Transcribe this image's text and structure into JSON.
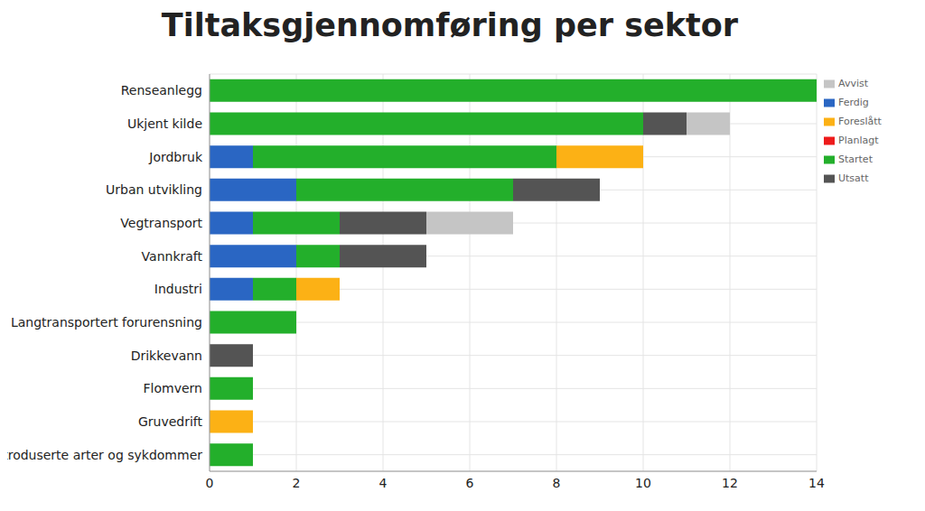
{
  "chart_data": {
    "type": "bar",
    "title": "Tiltaksgjennomføring per sektor",
    "orientation": "horizontal",
    "stacked": true,
    "grid": true,
    "legend": "top-right",
    "categories": [
      "Renseanlegg",
      "Ukjent kilde",
      "Jordbruk",
      "Urban utvikling",
      "Vegtransport",
      "Vannkraft",
      "Industri",
      "Langtransportert forurensning",
      "Drikkevann",
      "Flomvern",
      "Gruvedrift",
      "Introduserte arter og sykdommer"
    ],
    "series": [
      {
        "name": "Ferdig",
        "color": "#2a66c3",
        "values": [
          0,
          0,
          1,
          2,
          1,
          2,
          1,
          0,
          0,
          0,
          0,
          0
        ]
      },
      {
        "name": "Startet",
        "color": "#23af2b",
        "values": [
          14,
          10,
          7,
          5,
          2,
          1,
          1,
          2,
          0,
          1,
          0,
          1
        ]
      },
      {
        "name": "Planlagt",
        "color": "#ee1b1b",
        "values": [
          0,
          0,
          0,
          0,
          0,
          0,
          0,
          0,
          0,
          0,
          0,
          0
        ]
      },
      {
        "name": "Foreslått",
        "color": "#fcb115",
        "values": [
          0,
          0,
          2,
          0,
          0,
          0,
          1,
          0,
          0,
          0,
          1,
          0
        ]
      },
      {
        "name": "Utsatt",
        "color": "#545454",
        "values": [
          0,
          1,
          0,
          2,
          2,
          2,
          0,
          0,
          1,
          0,
          0,
          0
        ]
      },
      {
        "name": "Avvist",
        "color": "#c5c5c5",
        "values": [
          0,
          1,
          0,
          0,
          2,
          0,
          0,
          0,
          0,
          0,
          0,
          0
        ]
      }
    ],
    "xlim": [
      0,
      14
    ],
    "xticks": [
      0,
      2,
      4,
      6,
      8,
      10,
      12,
      14
    ]
  }
}
